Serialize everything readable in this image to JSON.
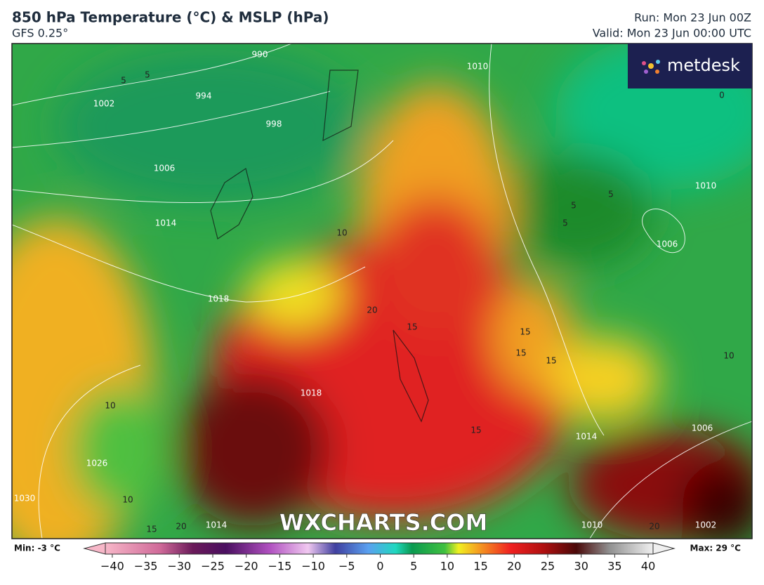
{
  "header": {
    "title": "850 hPa Temperature (°C) & MSLP (hPa)",
    "subtitle": "GFS 0.25°",
    "run": "Run: Mon 23 Jun 00Z",
    "valid": "Valid: Mon 23 Jun 00:00 UTC"
  },
  "logo": "metdesk",
  "watermark": "WXCHARTS.COM",
  "map": {
    "pressure_labels": [
      "990",
      "994",
      "998",
      "1002",
      "1006",
      "1010",
      "1014",
      "1018",
      "1010",
      "1006",
      "1026",
      "1030",
      "1014",
      "1014",
      "1006",
      "1018",
      "1010",
      "1002"
    ],
    "temperature_labels": [
      "5",
      "5",
      "10",
      "20",
      "15",
      "15",
      "15",
      "15",
      "5",
      "5",
      "5",
      "0",
      "10",
      "10",
      "15",
      "20",
      "15",
      "10",
      "20"
    ]
  },
  "legend": {
    "min": "Min: -3 °C",
    "max": "Max: 29 °C",
    "ticks": [
      {
        "value": -40,
        "label": "−40"
      },
      {
        "value": -35,
        "label": "−35"
      },
      {
        "value": -30,
        "label": "−30"
      },
      {
        "value": -25,
        "label": "−25"
      },
      {
        "value": -20,
        "label": "−20"
      },
      {
        "value": -15,
        "label": "−15"
      },
      {
        "value": -10,
        "label": "−10"
      },
      {
        "value": -5,
        "label": "−5"
      },
      0,
      5,
      10,
      15,
      20,
      25,
      30,
      35,
      40
    ]
  }
}
